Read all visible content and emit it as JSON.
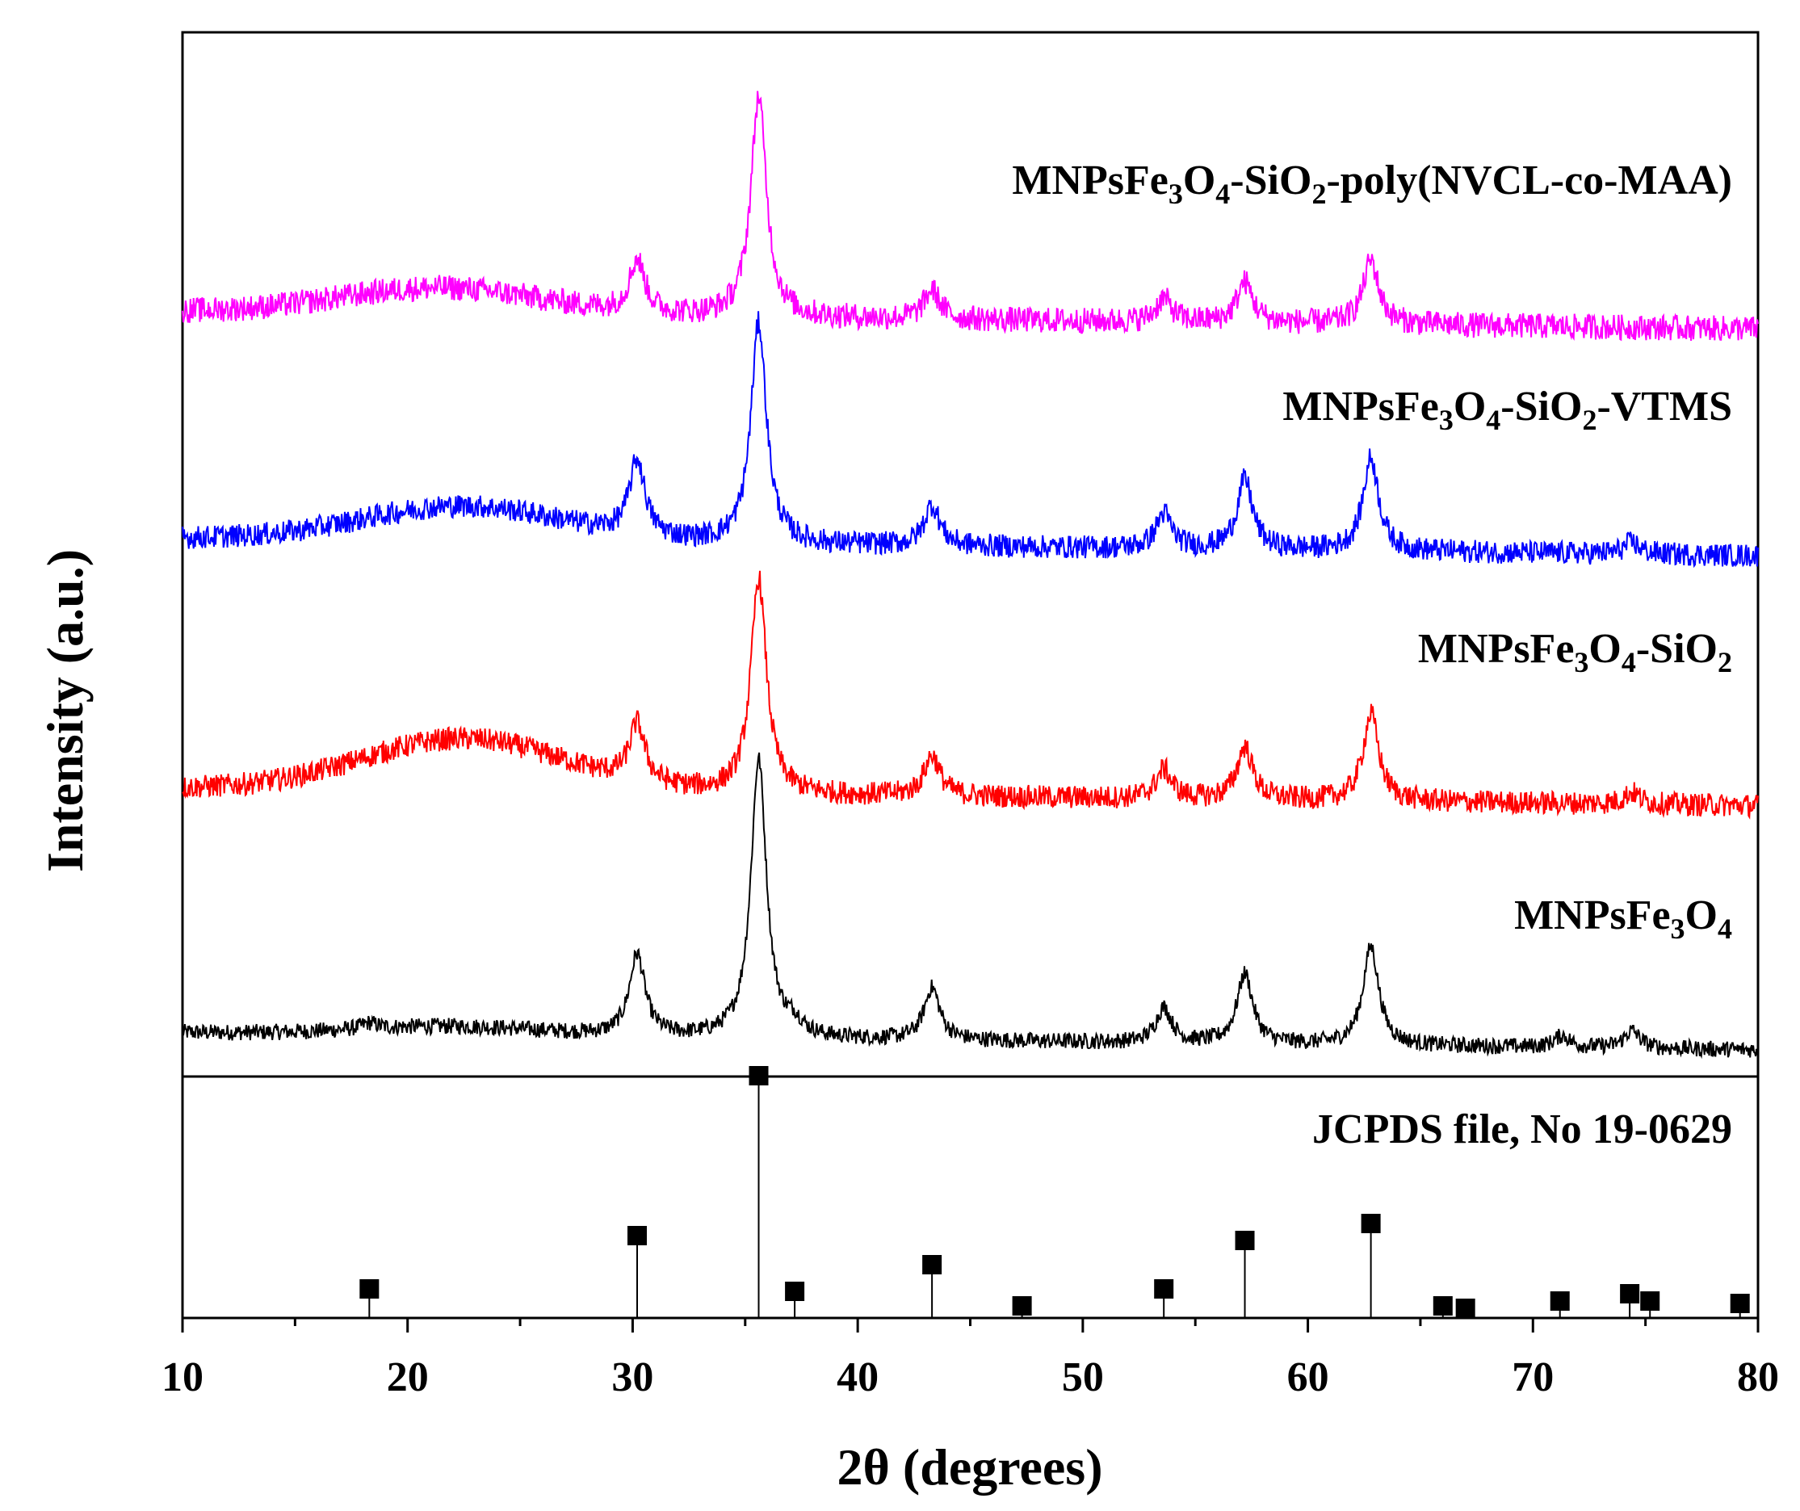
{
  "chart_data": {
    "type": "line",
    "title": "",
    "xlabel": "2θ (degrees)",
    "ylabel": "Intensity (a.u.)",
    "xlim": [
      10,
      80
    ],
    "xticks": [
      10,
      20,
      30,
      40,
      50,
      60,
      70,
      80
    ],
    "yticks": [],
    "grid": false,
    "series": [
      {
        "name": "MNPsFe3O4",
        "label_parts": [
          {
            "t": "MNPsFe",
            "sub": false
          },
          {
            "t": "3",
            "sub": true
          },
          {
            "t": "O",
            "sub": false
          },
          {
            "t": "4",
            "sub": true
          }
        ],
        "color": "#000000",
        "baseline": 0.0,
        "noise": 0.014,
        "hump": {
          "center": 22,
          "width": 4,
          "height": 0.015
        },
        "peaks": [
          {
            "x": 18.3,
            "h": 0.01
          },
          {
            "x": 30.2,
            "h": 0.14
          },
          {
            "x": 35.6,
            "h": 0.48
          },
          {
            "x": 37.2,
            "h": 0.02
          },
          {
            "x": 43.3,
            "h": 0.09
          },
          {
            "x": 53.6,
            "h": 0.06
          },
          {
            "x": 57.2,
            "h": 0.12
          },
          {
            "x": 62.8,
            "h": 0.17
          },
          {
            "x": 71.3,
            "h": 0.02
          },
          {
            "x": 74.4,
            "h": 0.03
          }
        ]
      },
      {
        "name": "MNPsFe3O4-SiO2",
        "label_parts": [
          {
            "t": "MNPsFe",
            "sub": false
          },
          {
            "t": "3",
            "sub": true
          },
          {
            "t": "O",
            "sub": false
          },
          {
            "t": "4",
            "sub": true
          },
          {
            "t": "-SiO",
            "sub": false
          },
          {
            "t": "2",
            "sub": true
          }
        ],
        "color": "#ff0000",
        "baseline": 0.42,
        "noise": 0.02,
        "hump": {
          "center": 22.5,
          "width": 4.5,
          "height": 0.09
        },
        "peaks": [
          {
            "x": 30.2,
            "h": 0.1
          },
          {
            "x": 35.6,
            "h": 0.37
          },
          {
            "x": 43.3,
            "h": 0.07
          },
          {
            "x": 53.6,
            "h": 0.05
          },
          {
            "x": 57.2,
            "h": 0.09
          },
          {
            "x": 62.8,
            "h": 0.15
          },
          {
            "x": 74.4,
            "h": 0.02
          }
        ]
      },
      {
        "name": "MNPsFe3O4-SiO2-VTMS",
        "label_parts": [
          {
            "t": "MNPsFe",
            "sub": false
          },
          {
            "t": "3",
            "sub": true
          },
          {
            "t": "O",
            "sub": false
          },
          {
            "t": "4",
            "sub": true
          },
          {
            "t": "-SiO",
            "sub": false
          },
          {
            "t": "2",
            "sub": true
          },
          {
            "t": "-VTMS",
            "sub": false
          }
        ],
        "color": "#0000ff",
        "baseline": 0.85,
        "noise": 0.02,
        "hump": {
          "center": 22.5,
          "width": 4.5,
          "height": 0.06
        },
        "peaks": [
          {
            "x": 30.2,
            "h": 0.13
          },
          {
            "x": 35.6,
            "h": 0.38
          },
          {
            "x": 43.3,
            "h": 0.07
          },
          {
            "x": 53.6,
            "h": 0.06
          },
          {
            "x": 57.2,
            "h": 0.12
          },
          {
            "x": 62.8,
            "h": 0.16
          },
          {
            "x": 74.4,
            "h": 0.02
          }
        ]
      },
      {
        "name": "MNPsFe3O4-SiO2-poly(NVCL-co-MAA)",
        "label_parts": [
          {
            "t": "MNPsFe",
            "sub": false
          },
          {
            "t": "3",
            "sub": true
          },
          {
            "t": "O",
            "sub": false
          },
          {
            "t": "4",
            "sub": true
          },
          {
            "t": "-SiO",
            "sub": false
          },
          {
            "t": "2",
            "sub": true
          },
          {
            "t": "-poly(NVCL-co-MAA)",
            "sub": false
          }
        ],
        "color": "#ff00ff",
        "baseline": 1.24,
        "noise": 0.022,
        "hump": {
          "center": 21.5,
          "width": 4.5,
          "height": 0.045
        },
        "peaks": [
          {
            "x": 30.2,
            "h": 0.09
          },
          {
            "x": 35.6,
            "h": 0.38
          },
          {
            "x": 43.3,
            "h": 0.05
          },
          {
            "x": 53.6,
            "h": 0.04
          },
          {
            "x": 57.2,
            "h": 0.07
          },
          {
            "x": 62.8,
            "h": 0.11
          }
        ]
      }
    ],
    "reference": {
      "name": "JCPDS file, No 19-0629",
      "positions": [
        18.3,
        30.2,
        35.6,
        37.2,
        43.3,
        47.3,
        53.6,
        57.2,
        62.8,
        66.0,
        67.0,
        71.2,
        74.3,
        75.2,
        79.2
      ],
      "intensities": [
        12,
        34,
        100,
        11,
        22,
        5,
        12,
        32,
        39,
        5,
        4,
        7,
        10,
        7,
        6
      ]
    }
  }
}
